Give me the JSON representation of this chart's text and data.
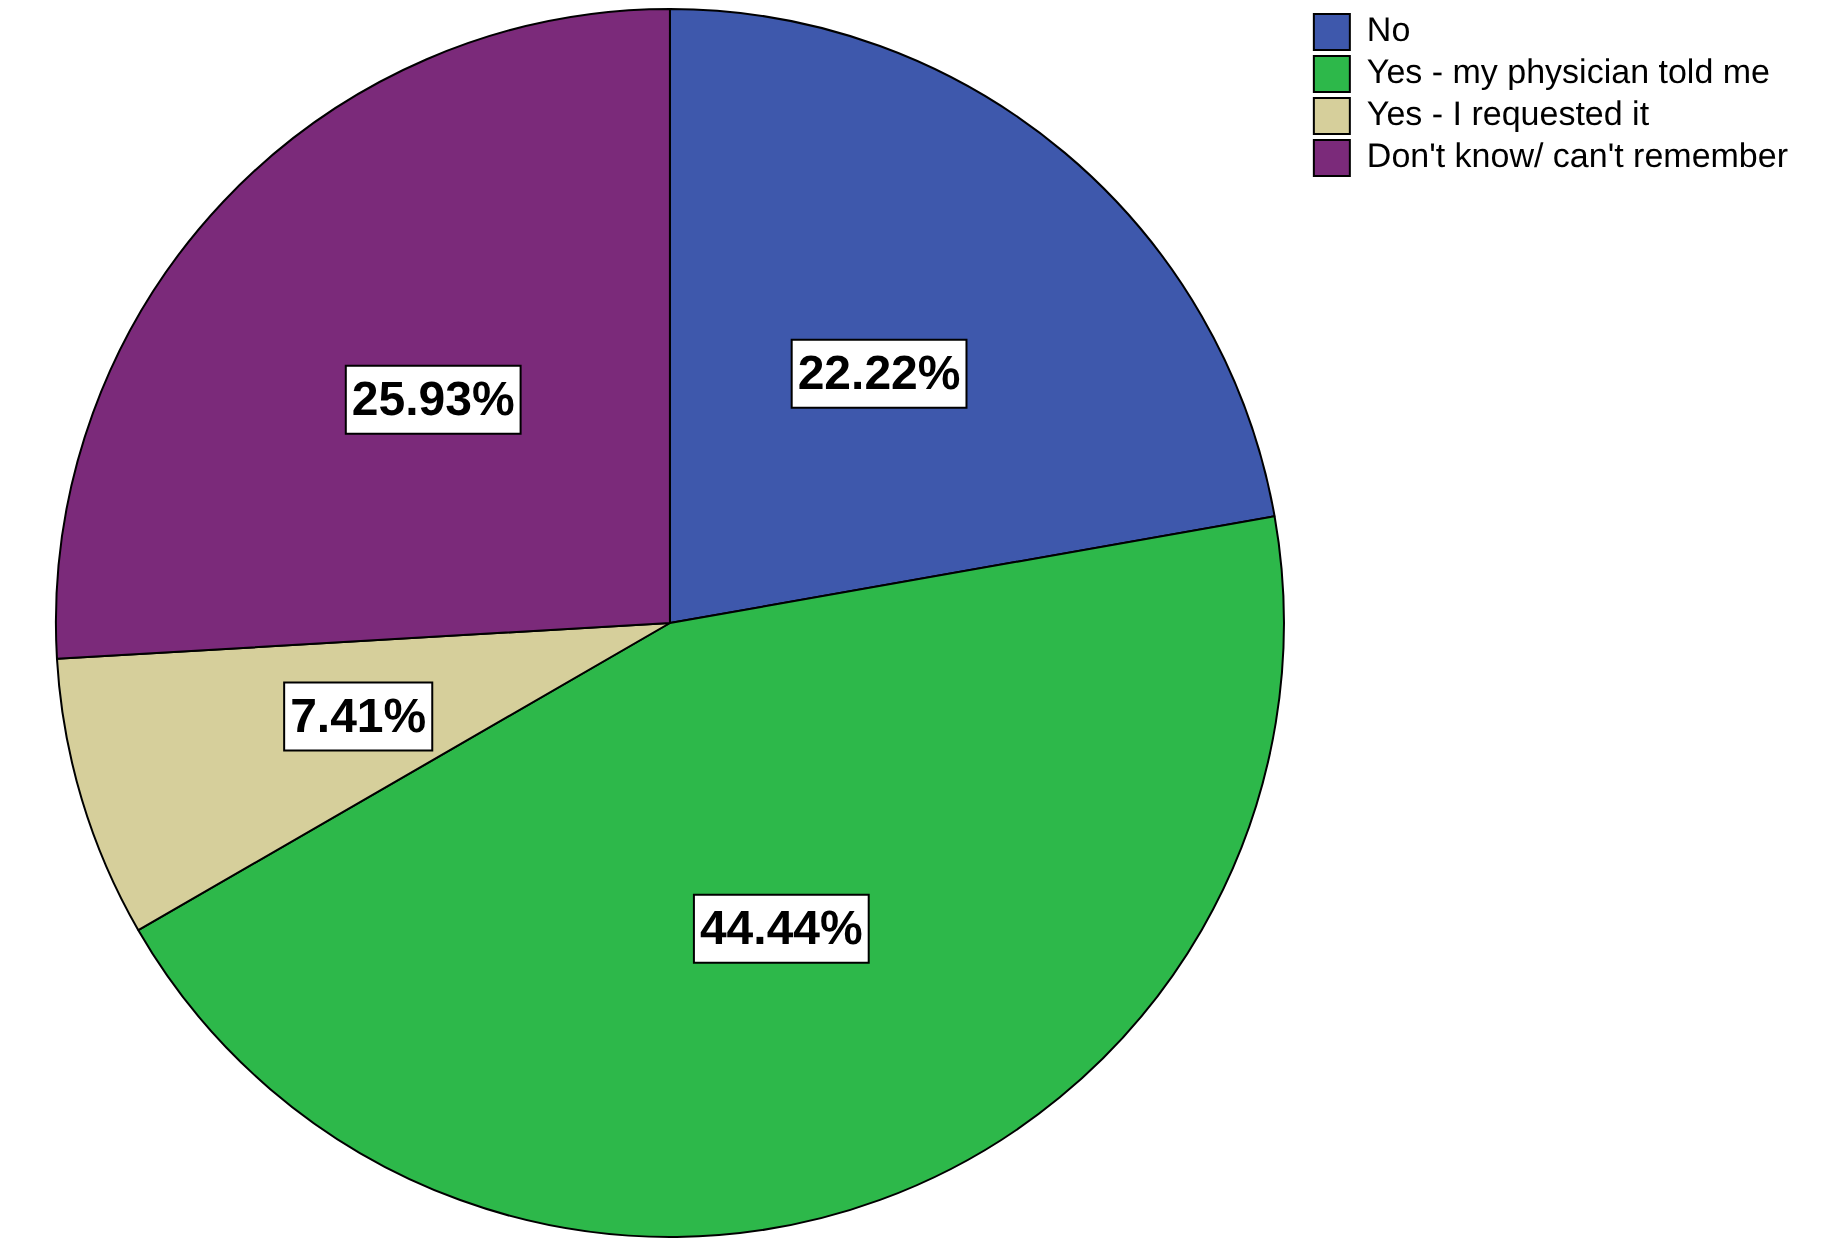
{
  "chart_data": {
    "type": "pie",
    "categories": [
      "No",
      "Yes - my physician told me",
      "Yes - I requested it",
      "Don't know/ can't remember"
    ],
    "values": [
      22.22,
      44.44,
      7.41,
      25.93
    ],
    "colors": [
      "#3e58ac",
      "#2db84a",
      "#d6cf9b",
      "#7b2a7a"
    ],
    "value_labels": [
      "22.22%",
      "44.44%",
      "7.41%",
      "25.93%"
    ],
    "legend": "top right"
  }
}
